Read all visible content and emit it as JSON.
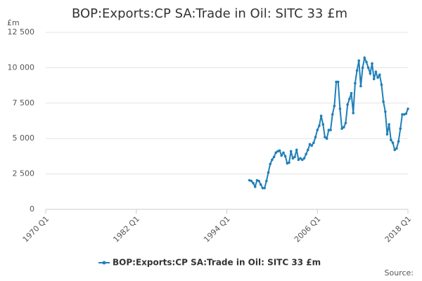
{
  "chart_data": {
    "type": "line",
    "title": "BOP:Exports:CP SA:Trade in Oil: SITC 33 £m",
    "y_label": "£m",
    "source": "Source:",
    "x": [
      1997,
      1997.25,
      1997.5,
      1997.75,
      1998,
      1998.25,
      1998.5,
      1998.75,
      1999,
      1999.25,
      1999.5,
      1999.75,
      2000,
      2000.25,
      2000.5,
      2000.75,
      2001,
      2001.25,
      2001.5,
      2001.75,
      2002,
      2002.25,
      2002.5,
      2002.75,
      2003,
      2003.25,
      2003.5,
      2003.75,
      2004,
      2004.25,
      2004.5,
      2004.75,
      2005,
      2005.25,
      2005.5,
      2005.75,
      2006,
      2006.25,
      2006.5,
      2006.75,
      2007,
      2007.25,
      2007.5,
      2007.75,
      2008,
      2008.25,
      2008.5,
      2008.75,
      2009,
      2009.25,
      2009.5,
      2009.75,
      2010,
      2010.25,
      2010.5,
      2010.75,
      2011,
      2011.25,
      2011.5,
      2011.75,
      2012,
      2012.25,
      2012.5,
      2012.75,
      2013,
      2013.25,
      2013.5,
      2013.75,
      2014,
      2014.25,
      2014.5,
      2014.75,
      2015,
      2015.25,
      2015.5,
      2015.75,
      2016,
      2016.25,
      2016.5,
      2016.75,
      2017,
      2017.25,
      2017.5,
      2017.75,
      2018
    ],
    "series": [
      {
        "name": "BOP:Exports:CP SA:Trade in Oil: SITC 33 £m",
        "color": "#1f7fb8",
        "values": [
          2050,
          2000,
          1850,
          1600,
          2050,
          2000,
          1750,
          1500,
          1500,
          2000,
          2600,
          3200,
          3500,
          3700,
          4000,
          4100,
          4150,
          3800,
          4000,
          3750,
          3250,
          3300,
          4100,
          3600,
          3700,
          4200,
          3500,
          3600,
          3500,
          3600,
          3900,
          4200,
          4600,
          4500,
          4700,
          5100,
          5600,
          5900,
          6600,
          6000,
          5100,
          5000,
          5600,
          5600,
          6700,
          7300,
          9000,
          9000,
          7100,
          5700,
          5800,
          6100,
          7400,
          7800,
          8200,
          6800,
          8900,
          9800,
          10500,
          8700,
          10000,
          10700,
          10400,
          10000,
          9600,
          10300,
          9200,
          9700,
          9300,
          9500,
          8800,
          7600,
          6900,
          5300,
          6000,
          4900,
          4700,
          4200,
          4300,
          4800,
          5700,
          6700,
          6700,
          6750,
          7100
        ]
      }
    ],
    "xlim": [
      1970,
      2018
    ],
    "xticks": [
      {
        "value": 1970,
        "label": "1970 Q1"
      },
      {
        "value": 1982,
        "label": "1982 Q1"
      },
      {
        "value": 1994,
        "label": "1994 Q1"
      },
      {
        "value": 2006,
        "label": "2006 Q1"
      },
      {
        "value": 2018,
        "label": "2018 Q1"
      }
    ],
    "ylim": [
      0,
      12500
    ],
    "yticks": [
      0,
      {
        "value": 2500,
        "label": "2 500"
      },
      {
        "value": 5000,
        "label": "5 000"
      },
      {
        "value": 7500,
        "label": "7 500"
      },
      {
        "value": 10000,
        "label": "10 000"
      },
      {
        "value": 12500,
        "label": "12 500"
      }
    ],
    "grid": true
  }
}
